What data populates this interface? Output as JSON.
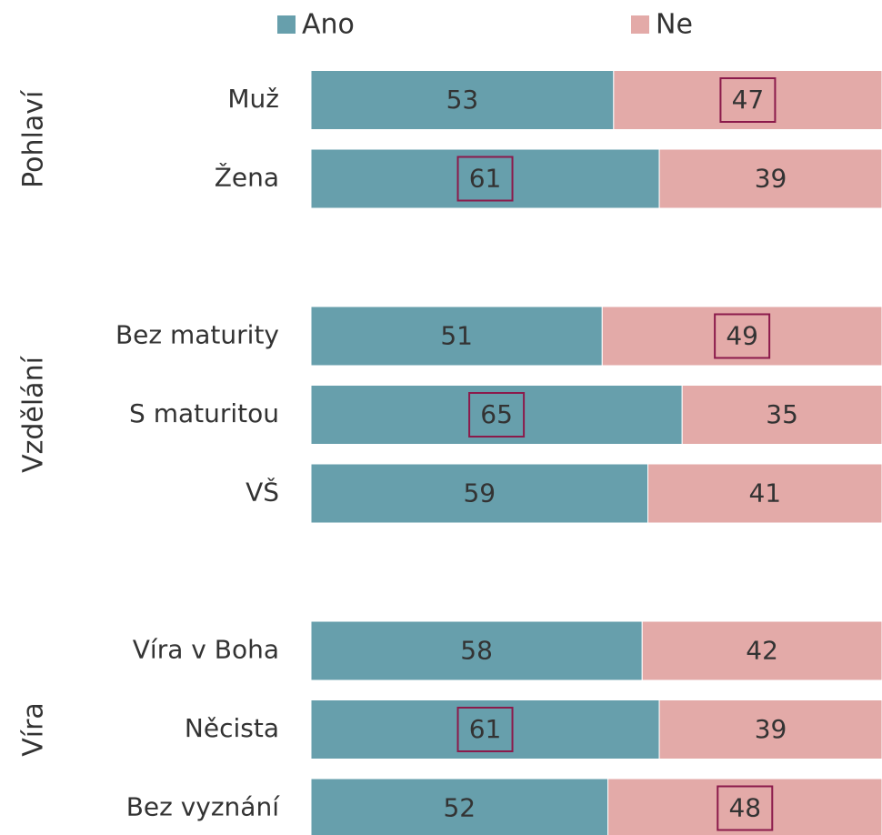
{
  "chart_data": {
    "type": "stacked_bar_h",
    "categories": [
      "Muž",
      "Žena",
      null,
      "Bez maturity",
      "S maturitou",
      "VŠ",
      null,
      "Víra v Boha",
      "Něcista",
      "Bez vyznání"
    ],
    "groups": [
      "Pohlaví",
      "Vzdělání",
      "Víra"
    ],
    "series": [
      {
        "name": "Ano",
        "color": "#679fac",
        "values": [
          53,
          61,
          null,
          51,
          65,
          59,
          null,
          58,
          61,
          52
        ]
      },
      {
        "name": "Ne",
        "color": "#e3aaa8",
        "values": [
          47,
          39,
          null,
          49,
          35,
          41,
          null,
          42,
          39,
          48
        ]
      }
    ],
    "boxed": [
      1,
      0,
      null,
      1,
      0,
      null,
      null,
      null,
      0,
      1
    ],
    "box_color": "#8b1a4b",
    "xlim": [
      0,
      100
    ]
  }
}
